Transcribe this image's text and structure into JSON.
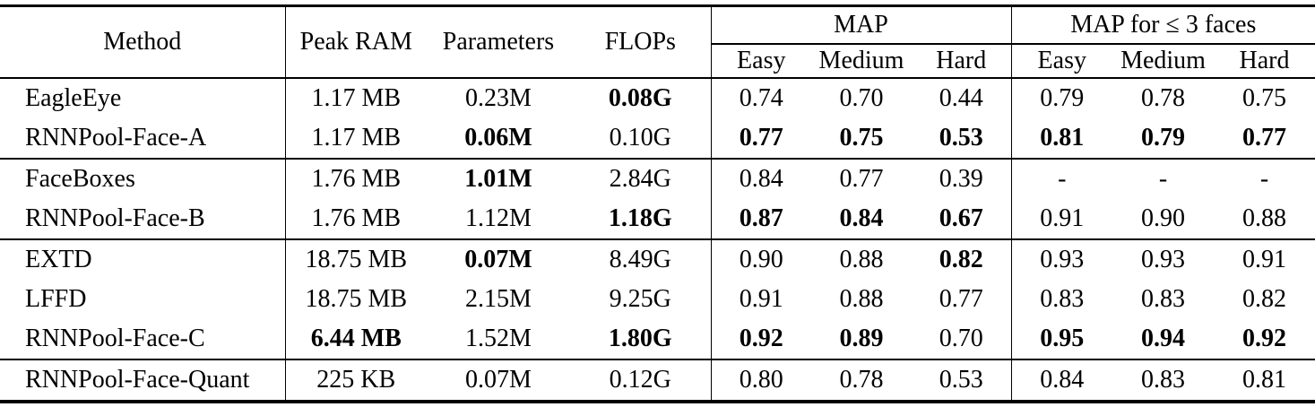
{
  "table": {
    "colors": {
      "text": "#000000",
      "background": "#ffffff",
      "rule": "#000000"
    },
    "header": {
      "method": "Method",
      "peak_ram": "Peak RAM",
      "parameters": "Parameters",
      "flops": "FLOPs",
      "map_group": "MAP",
      "map3_group": "MAP for ≤ 3 faces",
      "map_sub": [
        "Easy",
        "Medium",
        "Hard"
      ],
      "map3_sub": [
        "Easy",
        "Medium",
        "Hard"
      ]
    },
    "groups": [
      {
        "rows": [
          {
            "method": "EagleEye",
            "values": [
              "1.17 MB",
              "0.23M",
              "0.08G",
              "0.74",
              "0.70",
              "0.44",
              "0.79",
              "0.78",
              "0.75"
            ],
            "bold": [
              false,
              false,
              true,
              false,
              false,
              false,
              false,
              false,
              false
            ]
          },
          {
            "method": "RNNPool-Face-A",
            "values": [
              "1.17 MB",
              "0.06M",
              "0.10G",
              "0.77",
              "0.75",
              "0.53",
              "0.81",
              "0.79",
              "0.77"
            ],
            "bold": [
              false,
              true,
              false,
              true,
              true,
              true,
              true,
              true,
              true
            ]
          }
        ]
      },
      {
        "rows": [
          {
            "method": "FaceBoxes",
            "values": [
              "1.76 MB",
              "1.01M",
              "2.84G",
              "0.84",
              "0.77",
              "0.39",
              "-",
              "-",
              "-"
            ],
            "bold": [
              false,
              true,
              false,
              false,
              false,
              false,
              false,
              false,
              false
            ]
          },
          {
            "method": "RNNPool-Face-B",
            "values": [
              "1.76 MB",
              "1.12M",
              "1.18G",
              "0.87",
              "0.84",
              "0.67",
              "0.91",
              "0.90",
              "0.88"
            ],
            "bold": [
              false,
              false,
              true,
              true,
              true,
              true,
              false,
              false,
              false
            ]
          }
        ]
      },
      {
        "rows": [
          {
            "method": "EXTD",
            "values": [
              "18.75 MB",
              "0.07M",
              "8.49G",
              "0.90",
              "0.88",
              "0.82",
              "0.93",
              "0.93",
              "0.91"
            ],
            "bold": [
              false,
              true,
              false,
              false,
              false,
              true,
              false,
              false,
              false
            ]
          },
          {
            "method": "LFFD",
            "values": [
              "18.75 MB",
              "2.15M",
              "9.25G",
              "0.91",
              "0.88",
              "0.77",
              "0.83",
              "0.83",
              "0.82"
            ],
            "bold": [
              false,
              false,
              false,
              false,
              false,
              false,
              false,
              false,
              false
            ]
          },
          {
            "method": "RNNPool-Face-C",
            "values": [
              "6.44 MB",
              "1.52M",
              "1.80G",
              "0.92",
              "0.89",
              "0.70",
              "0.95",
              "0.94",
              "0.92"
            ],
            "bold": [
              true,
              false,
              true,
              true,
              true,
              false,
              true,
              true,
              true
            ]
          }
        ]
      },
      {
        "rows": [
          {
            "method": "RNNPool-Face-Quant",
            "values": [
              "225 KB",
              "0.07M",
              "0.12G",
              "0.80",
              "0.78",
              "0.53",
              "0.84",
              "0.83",
              "0.81"
            ],
            "bold": [
              false,
              false,
              false,
              false,
              false,
              false,
              false,
              false,
              false
            ]
          }
        ]
      }
    ]
  }
}
